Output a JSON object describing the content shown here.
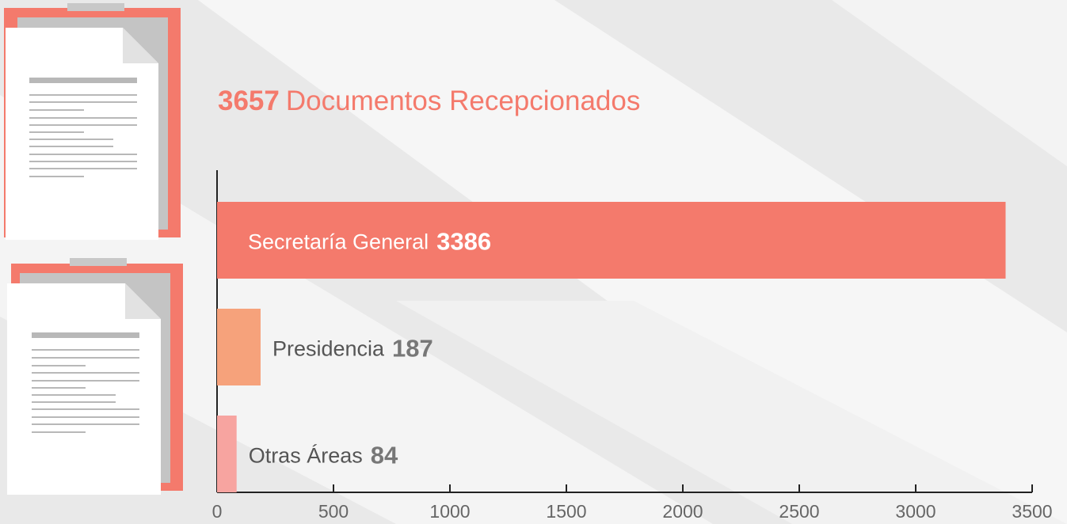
{
  "chart_data": {
    "type": "bar",
    "orientation": "horizontal",
    "total": 3657,
    "title": "Documentos Recepcionados",
    "categories": [
      "Secretaría General",
      "Presidencia",
      "Otras Áreas"
    ],
    "values": [
      3386,
      187,
      84
    ],
    "colors": [
      "#f47a6c",
      "#f6a27b",
      "#f7a4a0"
    ],
    "xlim": [
      0,
      3500
    ],
    "xticks": [
      0,
      500,
      1000,
      1500,
      2000,
      2500,
      3000,
      3500
    ]
  }
}
